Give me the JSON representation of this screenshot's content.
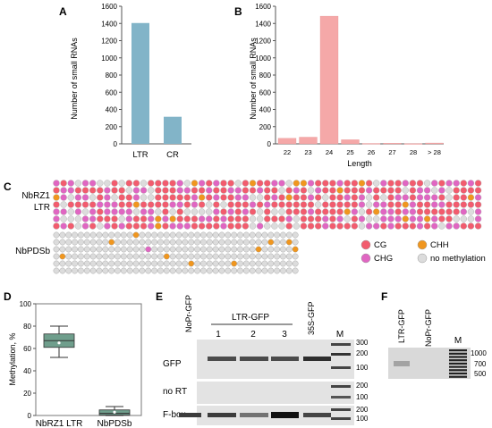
{
  "panels": {
    "A": {
      "label": "A",
      "ylabel": "Number of small RNAs",
      "yticks": [
        "0",
        "200",
        "400",
        "600",
        "800",
        "1000",
        "1200",
        "1400",
        "1600"
      ]
    },
    "B": {
      "label": "B",
      "ylabel": "Number of small RNAs",
      "xlabel": "Length",
      "yticks": [
        "0",
        "200",
        "400",
        "600",
        "800",
        "1000",
        "1200",
        "1400",
        "1600"
      ]
    },
    "C": {
      "label": "C",
      "row1_label_line1": "NbRZ1",
      "row1_label_line2": "LTR",
      "row2_label": "NbPDSb",
      "legend": [
        {
          "name": "CG",
          "color": "#f25c6e"
        },
        {
          "name": "CHH",
          "color": "#f0961e"
        },
        {
          "name": "CHG",
          "color": "#e066c2"
        },
        {
          "name": "no methylation",
          "color": "#dcdcdc"
        }
      ]
    },
    "D": {
      "label": "D",
      "ylabel": "Methylation, %",
      "yticks": [
        "0",
        "20",
        "40",
        "60",
        "80",
        "100"
      ]
    },
    "E": {
      "label": "E",
      "lanes": [
        "NoPr-GFP",
        "1",
        "2",
        "3",
        "35S-GFP",
        "M"
      ],
      "group_label": "LTR-GFP",
      "rows": [
        "GFP",
        "no RT",
        "F-box"
      ],
      "marker_sizes_gfp": [
        "300",
        "200",
        "100"
      ],
      "marker_sizes_nort": [
        "200",
        "100"
      ],
      "marker_sizes_fbox": [
        "200",
        "100"
      ]
    },
    "F": {
      "label": "F",
      "lanes": [
        "LTR-GFP",
        "NoPr-GFP",
        "M"
      ],
      "marker_sizes": [
        "1000",
        "700",
        "500"
      ]
    }
  },
  "chart_data": [
    {
      "panel": "A",
      "type": "bar",
      "categories": [
        "LTR",
        "CR"
      ],
      "values": [
        1405,
        315
      ],
      "ylabel": "Number of small RNAs",
      "ylim": [
        0,
        1600
      ],
      "color": "#82b4c8"
    },
    {
      "panel": "B",
      "type": "bar",
      "categories": [
        "22",
        "23",
        "24",
        "25",
        "26",
        "27",
        "28",
        "> 28"
      ],
      "values": [
        65,
        78,
        1485,
        48,
        5,
        8,
        3,
        10
      ],
      "xlabel": "Length",
      "ylabel": "Number of small RNAs",
      "ylim": [
        0,
        1600
      ],
      "color": "#f5a8a8"
    },
    {
      "panel": "D",
      "type": "box",
      "categories": [
        "NbRZ1 LTR",
        "NbPDSb"
      ],
      "boxes": [
        {
          "min": 52,
          "q1": 61,
          "median": 67,
          "mean": 65,
          "q3": 73,
          "max": 80
        },
        {
          "min": 0,
          "q1": 0.5,
          "median": 2,
          "mean": 3,
          "q3": 5,
          "max": 8
        }
      ],
      "ylabel": "Methylation, %",
      "ylim": [
        0,
        100
      ],
      "color": "#6f9e8c"
    }
  ]
}
